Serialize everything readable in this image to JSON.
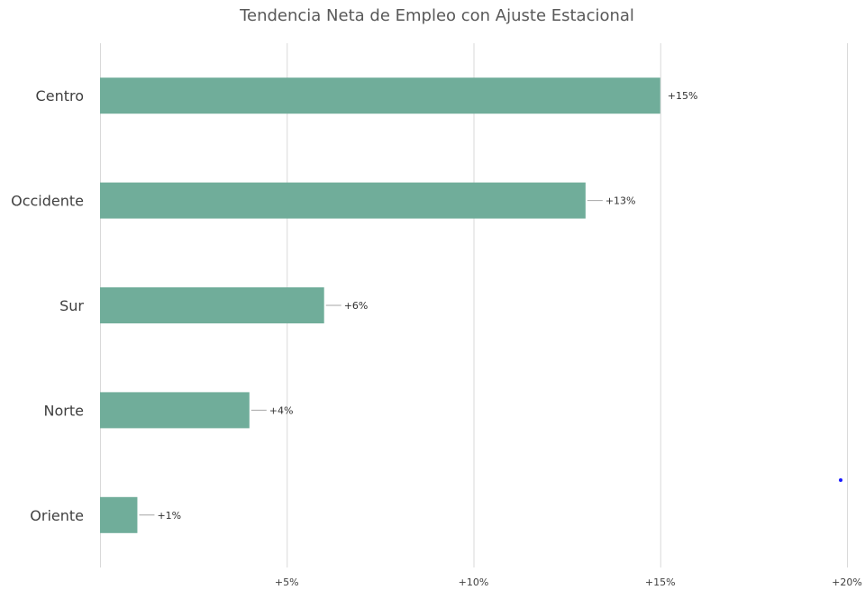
{
  "chart_data": {
    "type": "bar",
    "orientation": "horizontal",
    "title": "Tendencia Neta de Empleo con Ajuste Estacional",
    "categories": [
      "Centro",
      "Occidente",
      "Sur",
      "Norte",
      "Oriente"
    ],
    "values": [
      15,
      13,
      6,
      4,
      1
    ],
    "data_labels": [
      "+15%",
      "+13%",
      "+6%",
      "+4%",
      "+1%"
    ],
    "xlim": [
      0,
      20
    ],
    "x_ticks": [
      5,
      10,
      15,
      20
    ],
    "x_tick_labels": [
      "+5%",
      "+10%",
      "+15%",
      "+20%"
    ],
    "xlabel": "",
    "ylabel": "",
    "grid": "vertical",
    "legend": "none",
    "bar_color": "#70AD9A"
  }
}
